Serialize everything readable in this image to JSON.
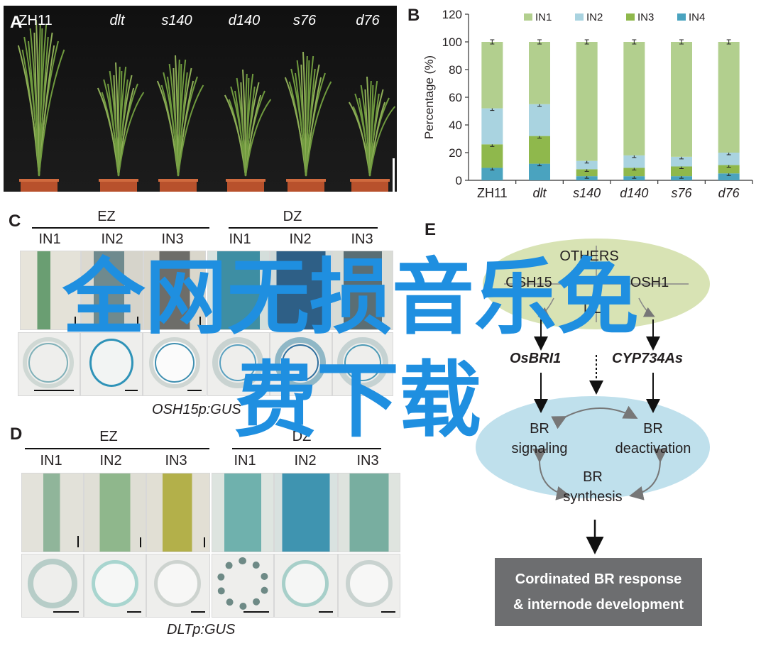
{
  "panels": {
    "a": {
      "letter": "A",
      "plants": [
        "ZH11",
        "dlt",
        "s140",
        "d140",
        "s76",
        "d76"
      ]
    },
    "b": {
      "letter": "B"
    },
    "c": {
      "letter": "C",
      "zones": [
        "EZ",
        "DZ"
      ],
      "internodes": [
        "IN1",
        "IN2",
        "IN3"
      ],
      "caption": "OSH15p:GUS"
    },
    "d": {
      "letter": "D",
      "zones": [
        "EZ",
        "DZ"
      ],
      "internodes": [
        "IN1",
        "IN2",
        "IN3"
      ],
      "caption": "DLTp:GUS"
    },
    "e": {
      "letter": "E",
      "others": "OTHERS",
      "osh15": "OSH15",
      "osh1": "OSH1",
      "dlt": "DLT",
      "osbri1": "OsBRI1",
      "cyp734as": "CYP734As",
      "br_signaling": [
        "BR",
        "signaling"
      ],
      "br_deactivation": [
        "BR",
        "deactivation"
      ],
      "br_synthesis": [
        "BR",
        "synthesis"
      ],
      "result": [
        "Cordinated BR response",
        "& internode development"
      ]
    }
  },
  "watermark": {
    "line1": "全网无损音乐免",
    "line2": "费下载",
    "color": "#1f8fe0"
  },
  "chart_data": {
    "type": "bar",
    "stacked": true,
    "categories": [
      "ZH11",
      "dlt",
      "s140",
      "d140",
      "s76",
      "d76"
    ],
    "categories_italic": [
      false,
      true,
      true,
      true,
      true,
      true
    ],
    "ylabel": "Percentage (%)",
    "ylim": [
      0,
      120
    ],
    "yticks": [
      0,
      20,
      40,
      60,
      80,
      100,
      120
    ],
    "legend": "top",
    "series": [
      {
        "name": "IN4",
        "color": "#4aa3bf",
        "values": [
          9,
          12,
          3,
          3,
          3,
          5
        ]
      },
      {
        "name": "IN3",
        "color": "#8fb84c",
        "values": [
          17,
          20,
          5,
          6,
          7,
          6
        ]
      },
      {
        "name": "IN2",
        "color": "#a9d3e0",
        "values": [
          26,
          23,
          6,
          9,
          7,
          9
        ]
      },
      {
        "name": "IN1",
        "color": "#b2cf8e",
        "values": [
          48,
          45,
          86,
          82,
          83,
          80
        ]
      }
    ],
    "legend_order": [
      "IN1",
      "IN2",
      "IN3",
      "IN4"
    ]
  }
}
